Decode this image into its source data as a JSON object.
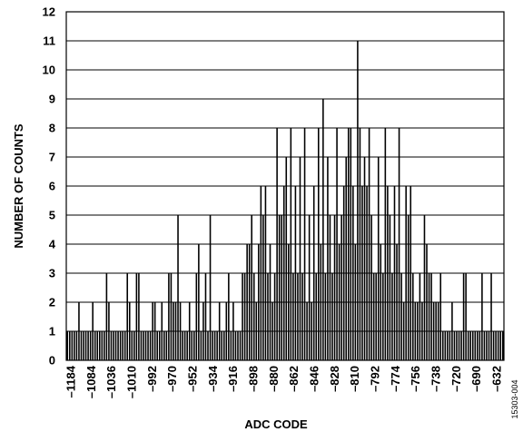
{
  "chart_data": {
    "type": "bar",
    "xlabel": "ADC CODE",
    "ylabel": "NUMBER OF COUNTS",
    "ylim": [
      0,
      12
    ],
    "y_ticks": [
      0,
      1,
      2,
      3,
      4,
      5,
      6,
      7,
      8,
      9,
      10,
      11,
      12
    ],
    "x_tick_labels": [
      "–1184",
      "–1084",
      "–1036",
      "–1010",
      "–992",
      "–970",
      "–952",
      "–934",
      "–916",
      "–898",
      "–880",
      "–862",
      "–846",
      "–828",
      "–810",
      "–792",
      "–774",
      "–756",
      "–738",
      "–720",
      "–690",
      "–632"
    ],
    "grid": "horizontal",
    "counts": [
      1,
      1,
      1,
      1,
      1,
      2,
      1,
      1,
      1,
      1,
      1,
      2,
      1,
      1,
      1,
      1,
      1,
      3,
      2,
      1,
      1,
      1,
      1,
      1,
      1,
      1,
      3,
      2,
      1,
      1,
      3,
      3,
      1,
      1,
      1,
      1,
      1,
      2,
      2,
      1,
      1,
      2,
      1,
      1,
      3,
      3,
      2,
      2,
      5,
      2,
      1,
      1,
      1,
      2,
      1,
      1,
      3,
      4,
      1,
      2,
      3,
      1,
      5,
      1,
      1,
      1,
      2,
      1,
      1,
      2,
      3,
      1,
      2,
      1,
      1,
      1,
      3,
      3,
      4,
      4,
      5,
      3,
      2,
      4,
      6,
      5,
      6,
      3,
      4,
      2,
      3,
      8,
      5,
      5,
      6,
      7,
      4,
      8,
      3,
      6,
      3,
      7,
      3,
      8,
      2,
      5,
      2,
      6,
      3,
      8,
      4,
      9,
      3,
      7,
      5,
      3,
      5,
      8,
      4,
      5,
      6,
      7,
      8,
      8,
      6,
      4,
      11,
      8,
      6,
      7,
      6,
      8,
      5,
      3,
      3,
      7,
      4,
      3,
      8,
      6,
      5,
      3,
      6,
      4,
      8,
      3,
      2,
      6,
      5,
      6,
      3,
      2,
      2,
      3,
      2,
      5,
      4,
      3,
      3,
      2,
      2,
      2,
      3,
      1,
      1,
      1,
      1,
      2,
      1,
      1,
      1,
      1,
      3,
      3,
      1,
      1,
      1,
      1,
      1,
      1,
      3,
      1,
      1,
      1,
      3,
      1,
      1,
      1,
      1,
      1
    ],
    "figure_id": "15303-004"
  }
}
